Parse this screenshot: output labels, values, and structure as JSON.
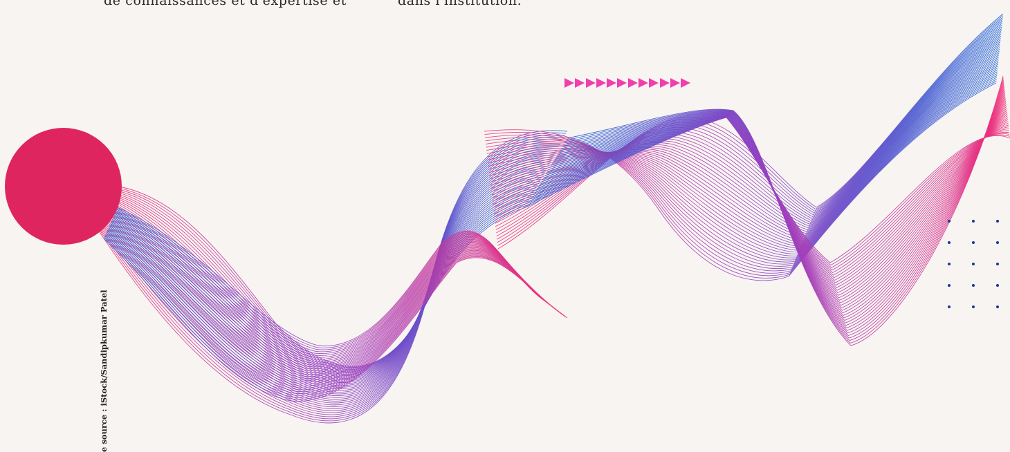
{
  "text": {
    "left_line": "de connaissances et d'expertise et",
    "right_line": "dans l'institution."
  },
  "image_credit": "e source : iStock/Sandipkumar Patel",
  "colors": {
    "background": "#f7f4f1",
    "circle": "#de2560",
    "wave_pink": "#ee2f7a",
    "wave_blue": "#1f63d8",
    "arrows": "#ee3fae",
    "dots": "#183a8c"
  },
  "decor": {
    "arrow_count": 12,
    "dot_grid": {
      "rows": 5,
      "cols": 3
    }
  }
}
